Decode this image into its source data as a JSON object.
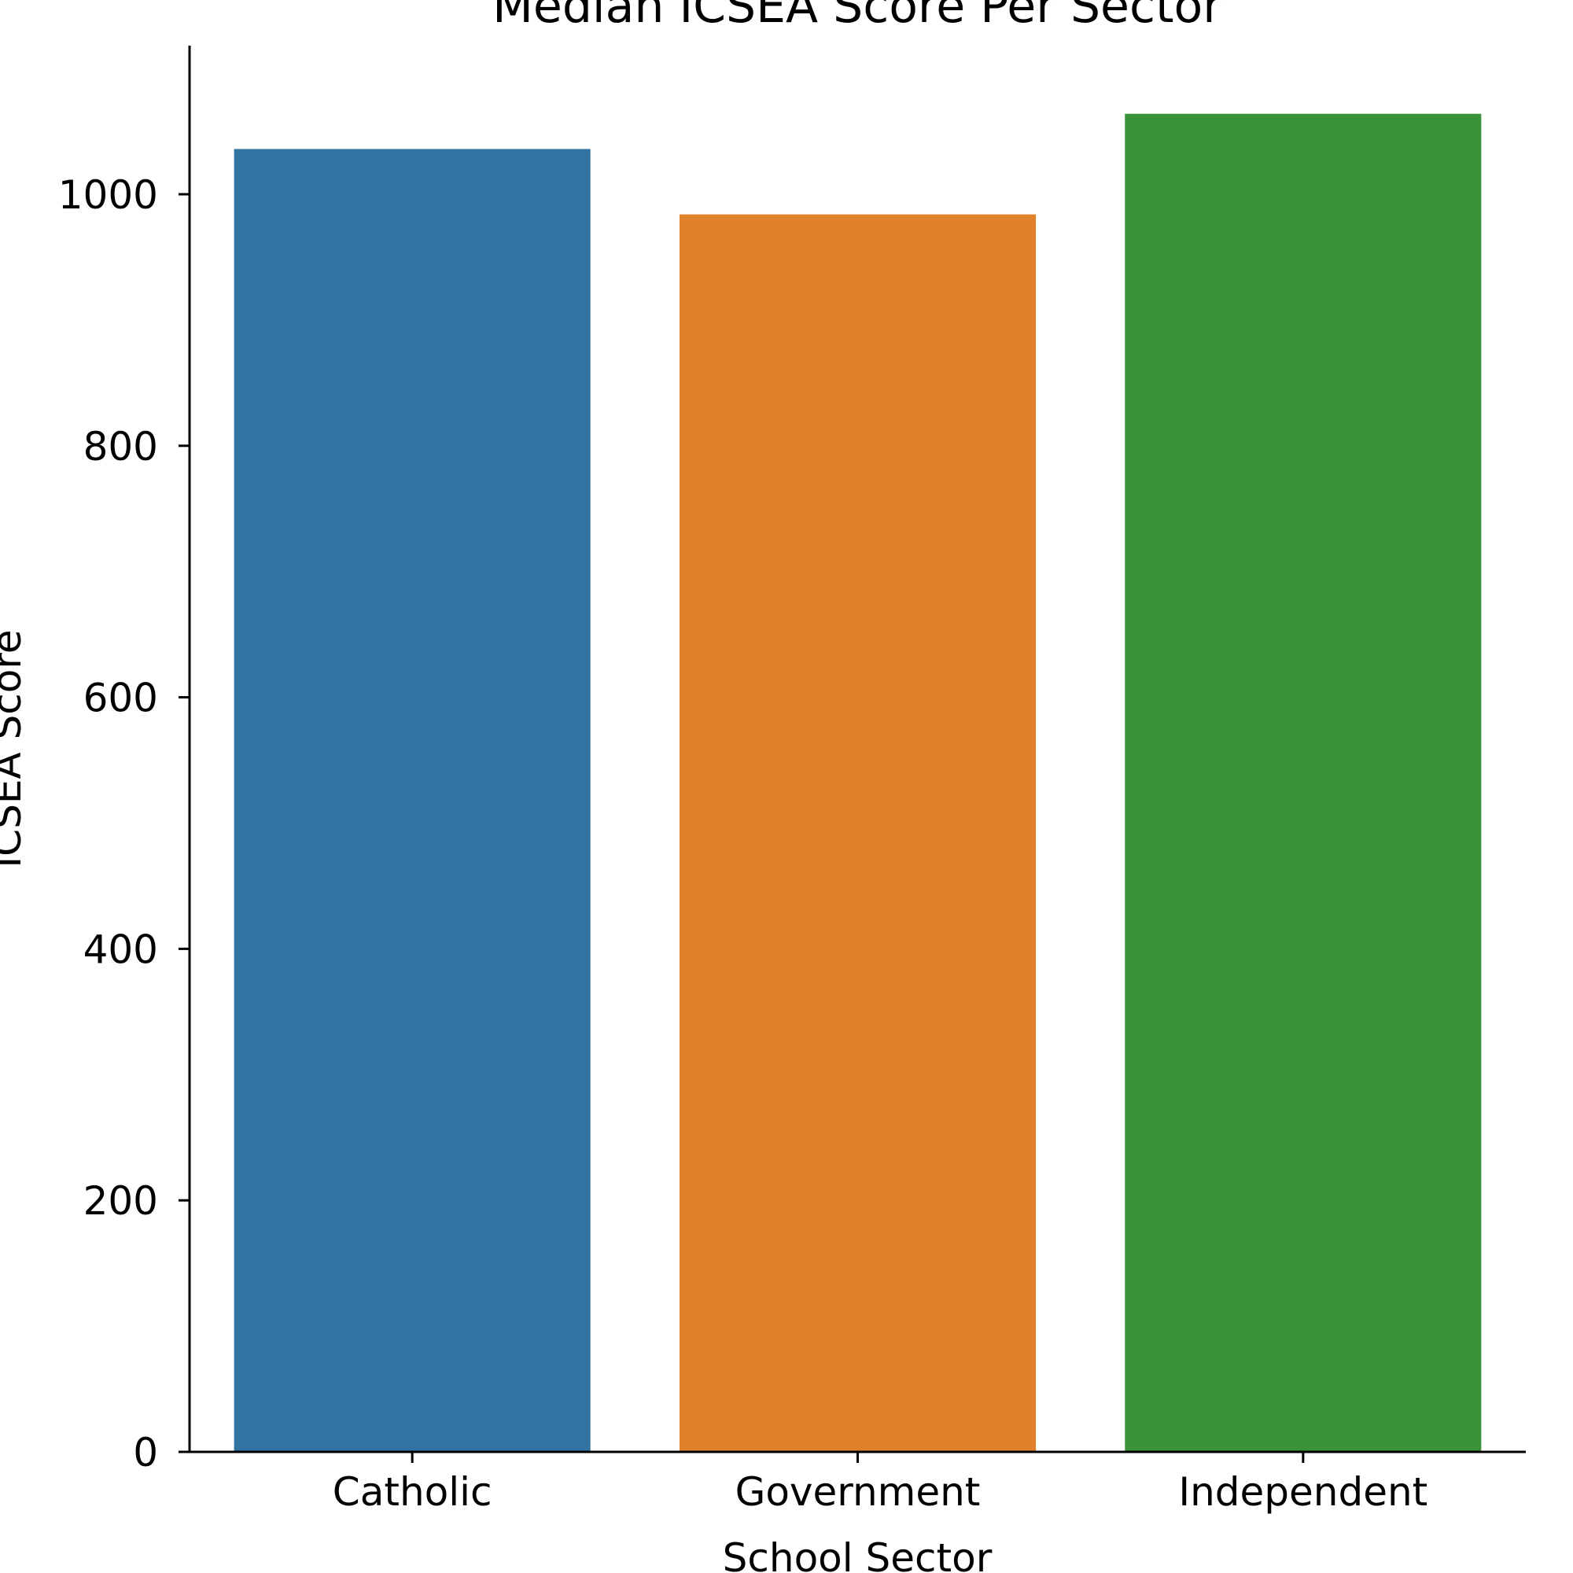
{
  "chart_data": {
    "type": "bar",
    "title": "Median ICSEA Score Per Sector",
    "xlabel": "School Sector",
    "ylabel": "ICSEA Score",
    "categories": [
      "Catholic",
      "Government",
      "Independent"
    ],
    "values": [
      1036,
      984,
      1064
    ],
    "colors": [
      "#3274a1",
      "#e1812c",
      "#3a923a"
    ],
    "ylim": [
      0,
      1120
    ],
    "yticks": [
      0,
      200,
      400,
      600,
      800,
      1000
    ],
    "grid": false,
    "legend": "none"
  }
}
